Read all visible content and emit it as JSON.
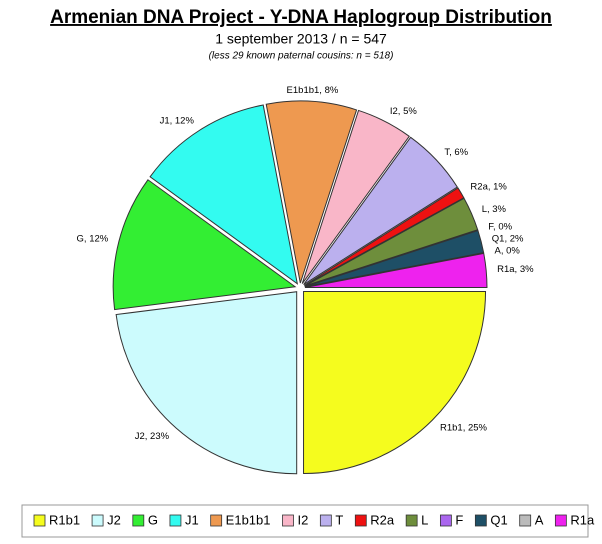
{
  "chart_data": {
    "type": "pie",
    "title": "Armenian DNA Project - Y-DNA Haplogroup Distribution",
    "subtitle": "1 september 2013 / n = 547",
    "note": "(less 29 known paternal cousins: n = 518)",
    "categories": [
      "R1b1",
      "J2",
      "G",
      "J1",
      "E1b1b1",
      "I2",
      "T",
      "R2a",
      "L",
      "F",
      "Q1",
      "A",
      "R1a"
    ],
    "values": [
      25,
      23,
      12,
      12,
      8,
      5,
      6,
      1,
      3,
      0,
      2,
      0,
      3
    ],
    "value_labels": [
      "R1b1, 25%",
      "J2, 23%",
      "G, 12%",
      "J1, 12%",
      "E1b1b1, 8%",
      "I2, 5%",
      "T, 6%",
      "R2a, 1%",
      "L, 3%",
      "F, 0%",
      "Q1, 2%",
      "A, 0%",
      "R1a, 3%"
    ],
    "colors": [
      "#f5fc1e",
      "#ccfbfd",
      "#33ee33",
      "#33fbf0",
      "#ee9950",
      "#f9b6c8",
      "#bbb0ee",
      "#ee1111",
      "#6e8e3c",
      "#aa66ee",
      "#1e4f66",
      "#bbbbbb",
      "#ee22ee"
    ],
    "legend": "bottom"
  }
}
